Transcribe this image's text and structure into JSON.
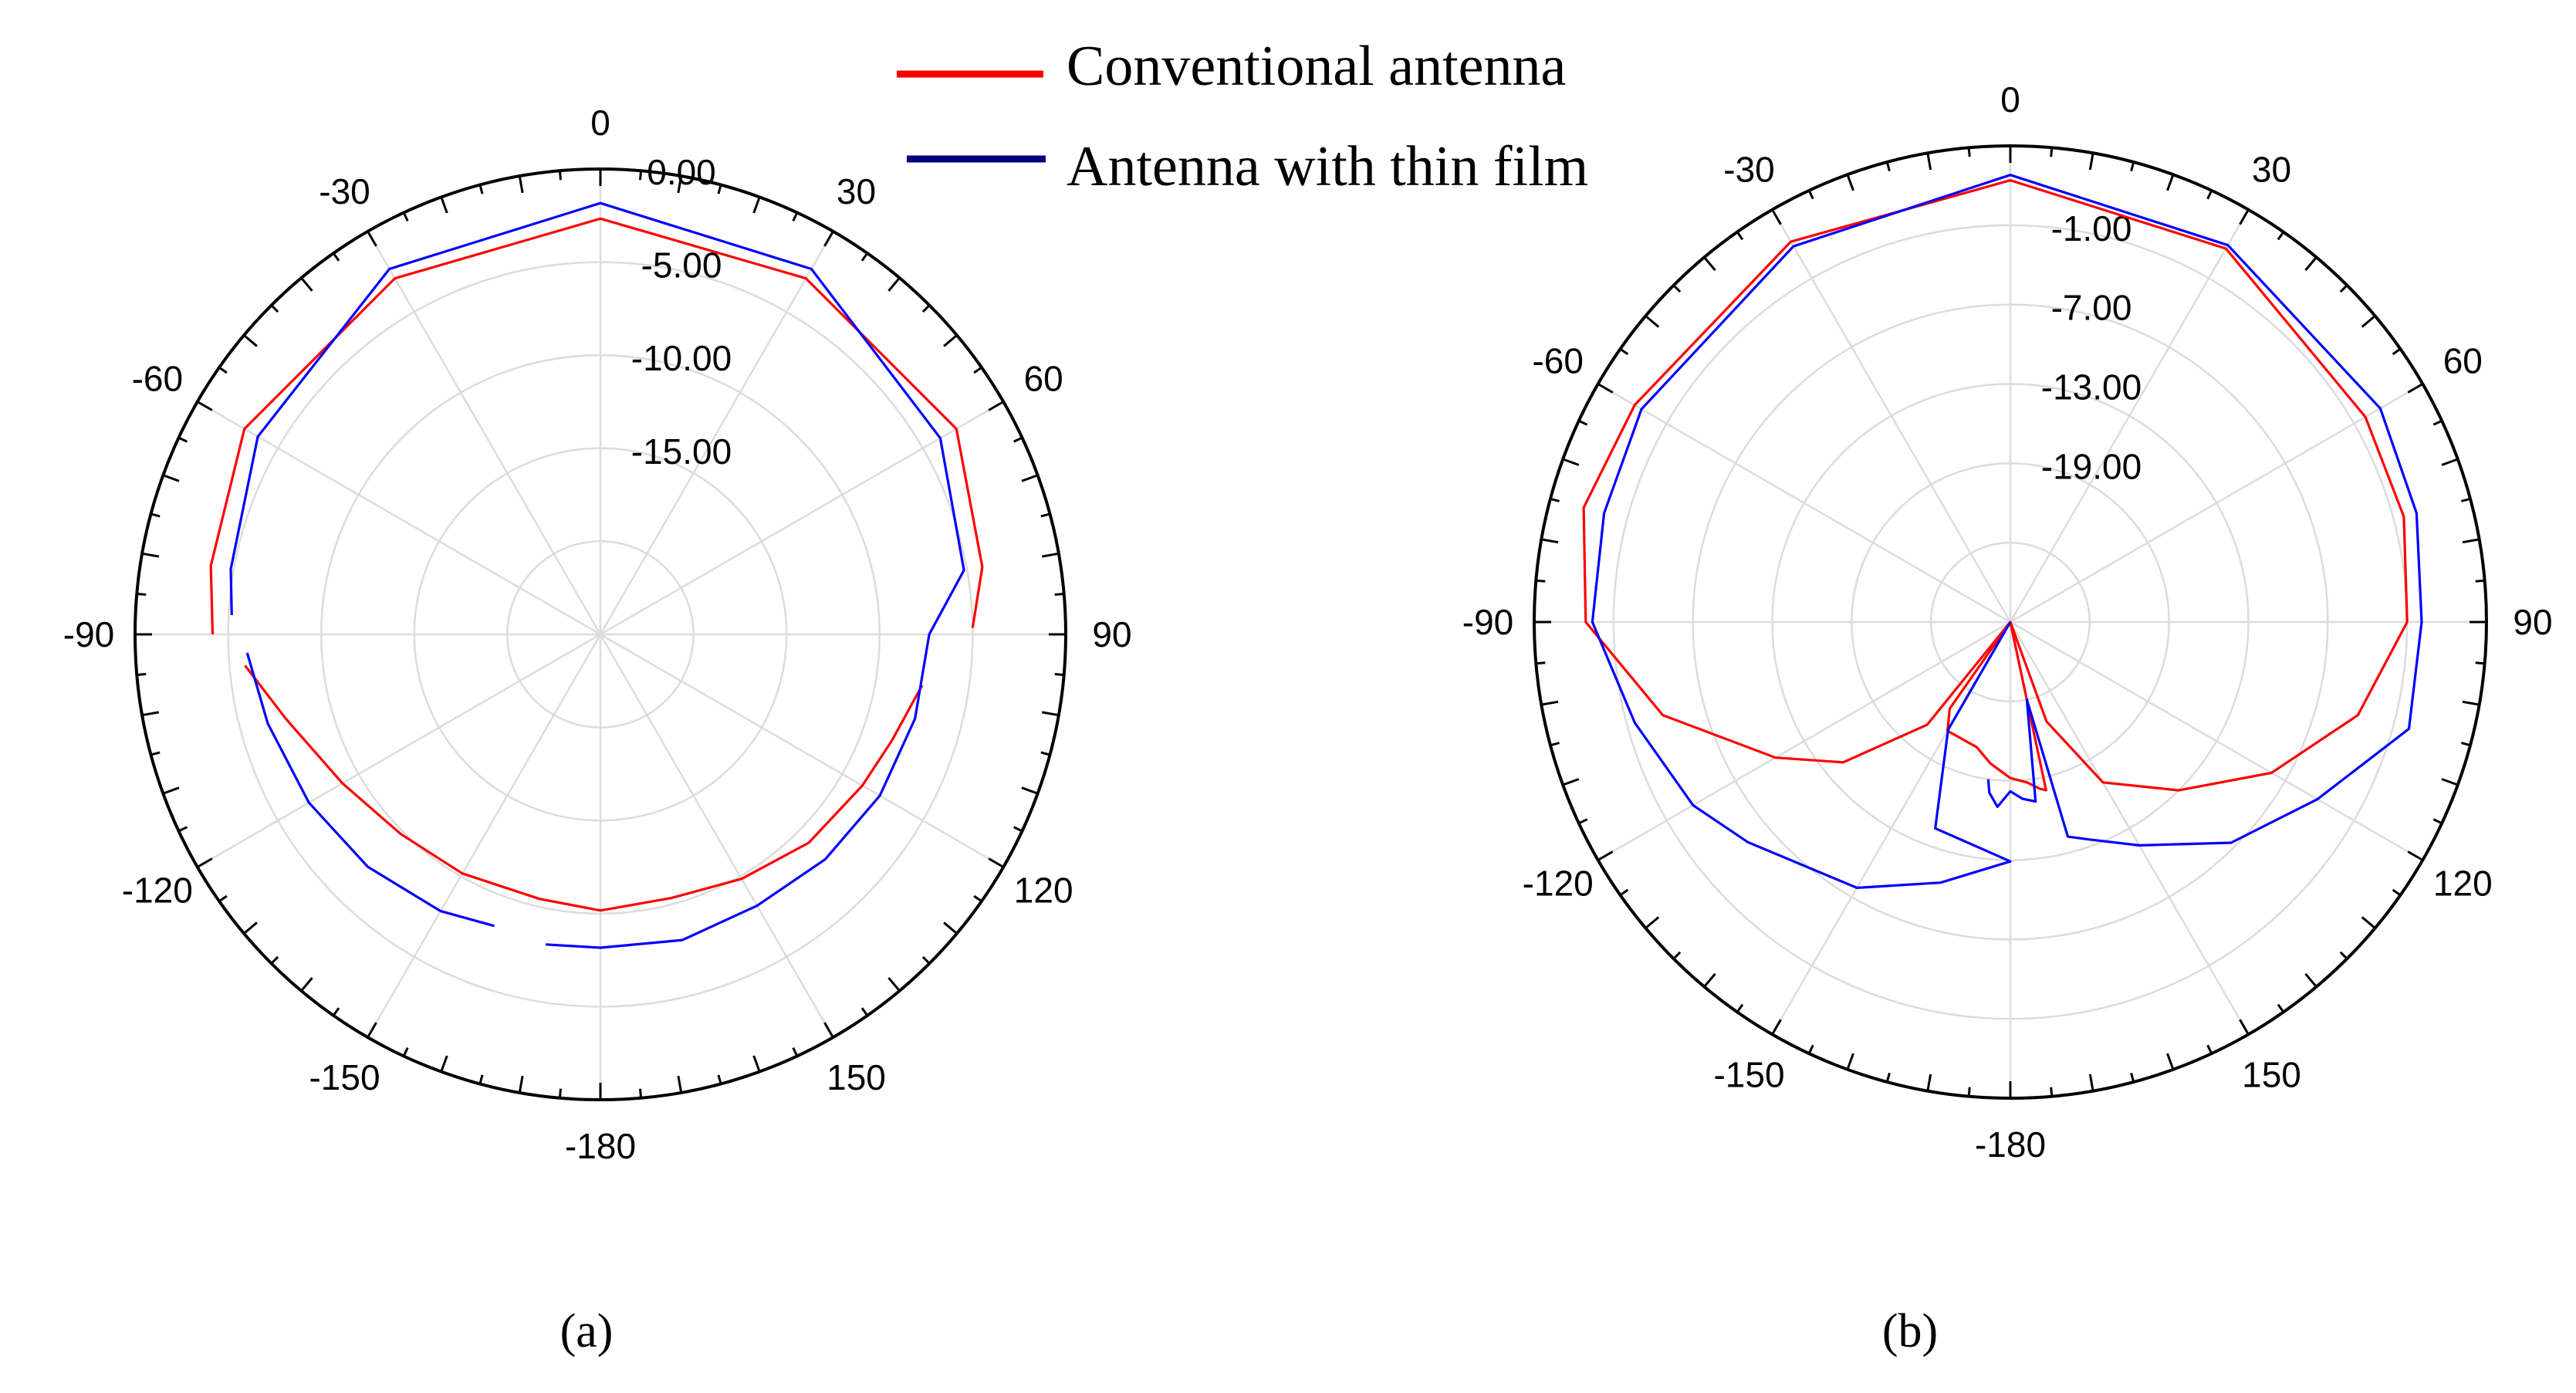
{
  "legend": {
    "items": [
      {
        "label": "Conventional antenna",
        "color": "#ff0000"
      },
      {
        "label": "Antenna with thin film",
        "color": "#000080"
      }
    ]
  },
  "chart_data": [
    {
      "type": "polar-line",
      "caption": "(a)",
      "angle_ticks": [
        "0",
        "30",
        "60",
        "90",
        "120",
        "150",
        "-180",
        "-150",
        "-120",
        "-90",
        "-60",
        "-30"
      ],
      "ring_labels": [
        "0.00",
        "-5.00",
        "-10.00",
        "-15.00"
      ],
      "radial_range": [
        -25,
        5
      ],
      "series": [
        {
          "name": "Conventional antenna",
          "color": "#ff0000",
          "segments": [
            [
              [
                -90,
                0
              ],
              [
                -80,
                0.5
              ],
              [
                -60,
                1.5
              ],
              [
                -30,
                1.5
              ],
              [
                0,
                1.8
              ],
              [
                30,
                1.5
              ],
              [
                60,
                1.5
              ],
              [
                80,
                0
              ],
              [
                89,
                -1
              ]
            ],
            [
              [
                99,
                -4
              ],
              [
                110,
                -5
              ],
              [
                120,
                -5.5
              ],
              [
                135,
                -6
              ],
              [
                150,
                -6.8
              ],
              [
                165,
                -7.4
              ],
              [
                180,
                -7.2
              ],
              [
                -167,
                -7.5
              ],
              [
                -150,
                -7.2
              ],
              [
                -135,
                -6.8
              ],
              [
                -120,
                -5.8
              ],
              [
                -105,
                -4
              ],
              [
                -95,
                -2
              ]
            ]
          ]
        },
        {
          "name": "Antenna with thin film",
          "color": "#0000ff",
          "segments": [
            [
              [
                -87,
                -1.2
              ],
              [
                -80,
                -0.8
              ],
              [
                -60,
                0.5
              ],
              [
                -30,
                2.2
              ],
              [
                0,
                2.8
              ],
              [
                30,
                2.2
              ],
              [
                60,
                0.3
              ],
              [
                80,
                -1.2
              ],
              [
                90,
                -3.8
              ],
              [
                105,
                -4
              ],
              [
                120,
                -4.2
              ],
              [
                135,
                -4.5
              ],
              [
                150,
                -4.8
              ],
              [
                165,
                -4.6
              ],
              [
                180,
                -4.8
              ],
              [
                -170,
                -4.7
              ]
            ],
            [
              [
                -160,
                -5
              ],
              [
                -150,
                -4.4
              ],
              [
                -135,
                -3.8
              ],
              [
                -120,
                -3.3
              ],
              [
                -105,
                -2.8
              ],
              [
                -93,
                -2.2
              ]
            ]
          ]
        }
      ]
    },
    {
      "type": "polar-line",
      "caption": "(b)",
      "angle_ticks": [
        "0",
        "30",
        "60",
        "90",
        "120",
        "150",
        "-180",
        "-150",
        "-120",
        "-90",
        "-60",
        "-30"
      ],
      "ring_labels": [
        "-1.00",
        "-7.00",
        "-13.00",
        "-19.00"
      ],
      "radial_range": [
        -31,
        5
      ],
      "series": [
        {
          "name": "Conventional antenna",
          "color": "#ff0000",
          "segments": [
            [
              [
                -141,
                -31
              ],
              [
                -145,
                -23
              ],
              [
                -150,
                -21.5
              ],
              [
                -165,
                -21.2
              ],
              [
                -172,
                -20.2
              ],
              [
                180,
                -19.2
              ],
              [
                174,
                -18.8
              ],
              [
                170,
                -18.2
              ],
              [
                168,
                -18
              ],
              [
                165,
                -31
              ],
              [
                160,
                -23
              ],
              [
                150,
                -17
              ],
              [
                135,
                -13
              ],
              [
                120,
                -8.2
              ],
              [
                105,
                -3.8
              ],
              [
                90,
                -1
              ],
              [
                75,
                -0.2
              ],
              [
                60,
                0
              ],
              [
                30,
                1.6
              ],
              [
                0,
                2.4
              ],
              [
                -30,
                2.2
              ],
              [
                -60,
                1.8
              ],
              [
                -75,
                2.4
              ],
              [
                -90,
                1.1
              ],
              [
                -105,
                -3.8
              ],
              [
                -120,
                -10.5
              ],
              [
                -130,
                -14.5
              ],
              [
                -141,
                -21
              ],
              [
                -143,
                -31
              ]
            ]
          ]
        },
        {
          "name": "Antenna with thin film",
          "color": "#0000ff",
          "segments": [
            [
              [
                -141,
                -31
              ],
              [
                -150,
                -21.6
              ],
              [
                -160,
                -14.4
              ],
              [
                -180,
                -12.9
              ],
              [
                -165,
                -10.6
              ],
              [
                -150,
                -7.8
              ],
              [
                -130,
                -5.1
              ],
              [
                -120,
                -3.3
              ],
              [
                -105,
                -1.6
              ],
              [
                -90,
                0.6
              ],
              [
                -75,
                0.8
              ],
              [
                -60,
                1.2
              ],
              [
                -30,
                1.8
              ],
              [
                0,
                2.8
              ],
              [
                30,
                1.9
              ],
              [
                60,
                1.3
              ],
              [
                75,
                0.8
              ],
              [
                90,
                0.1
              ],
              [
                105,
                0.2
              ],
              [
                120,
                -4.2
              ],
              [
                135,
                -7.4
              ],
              [
                150,
                -11.5
              ],
              [
                160,
                -13.5
              ],
              [
                165,
                -14.2
              ],
              [
                168,
                -25
              ],
              [
                172,
                -17.3
              ],
              [
                176,
                -17.6
              ],
              [
                180,
                -18.2
              ],
              [
                -176,
                -17
              ],
              [
                -173,
                -18
              ],
              [
                -172,
                -19
              ]
            ]
          ]
        }
      ]
    }
  ]
}
